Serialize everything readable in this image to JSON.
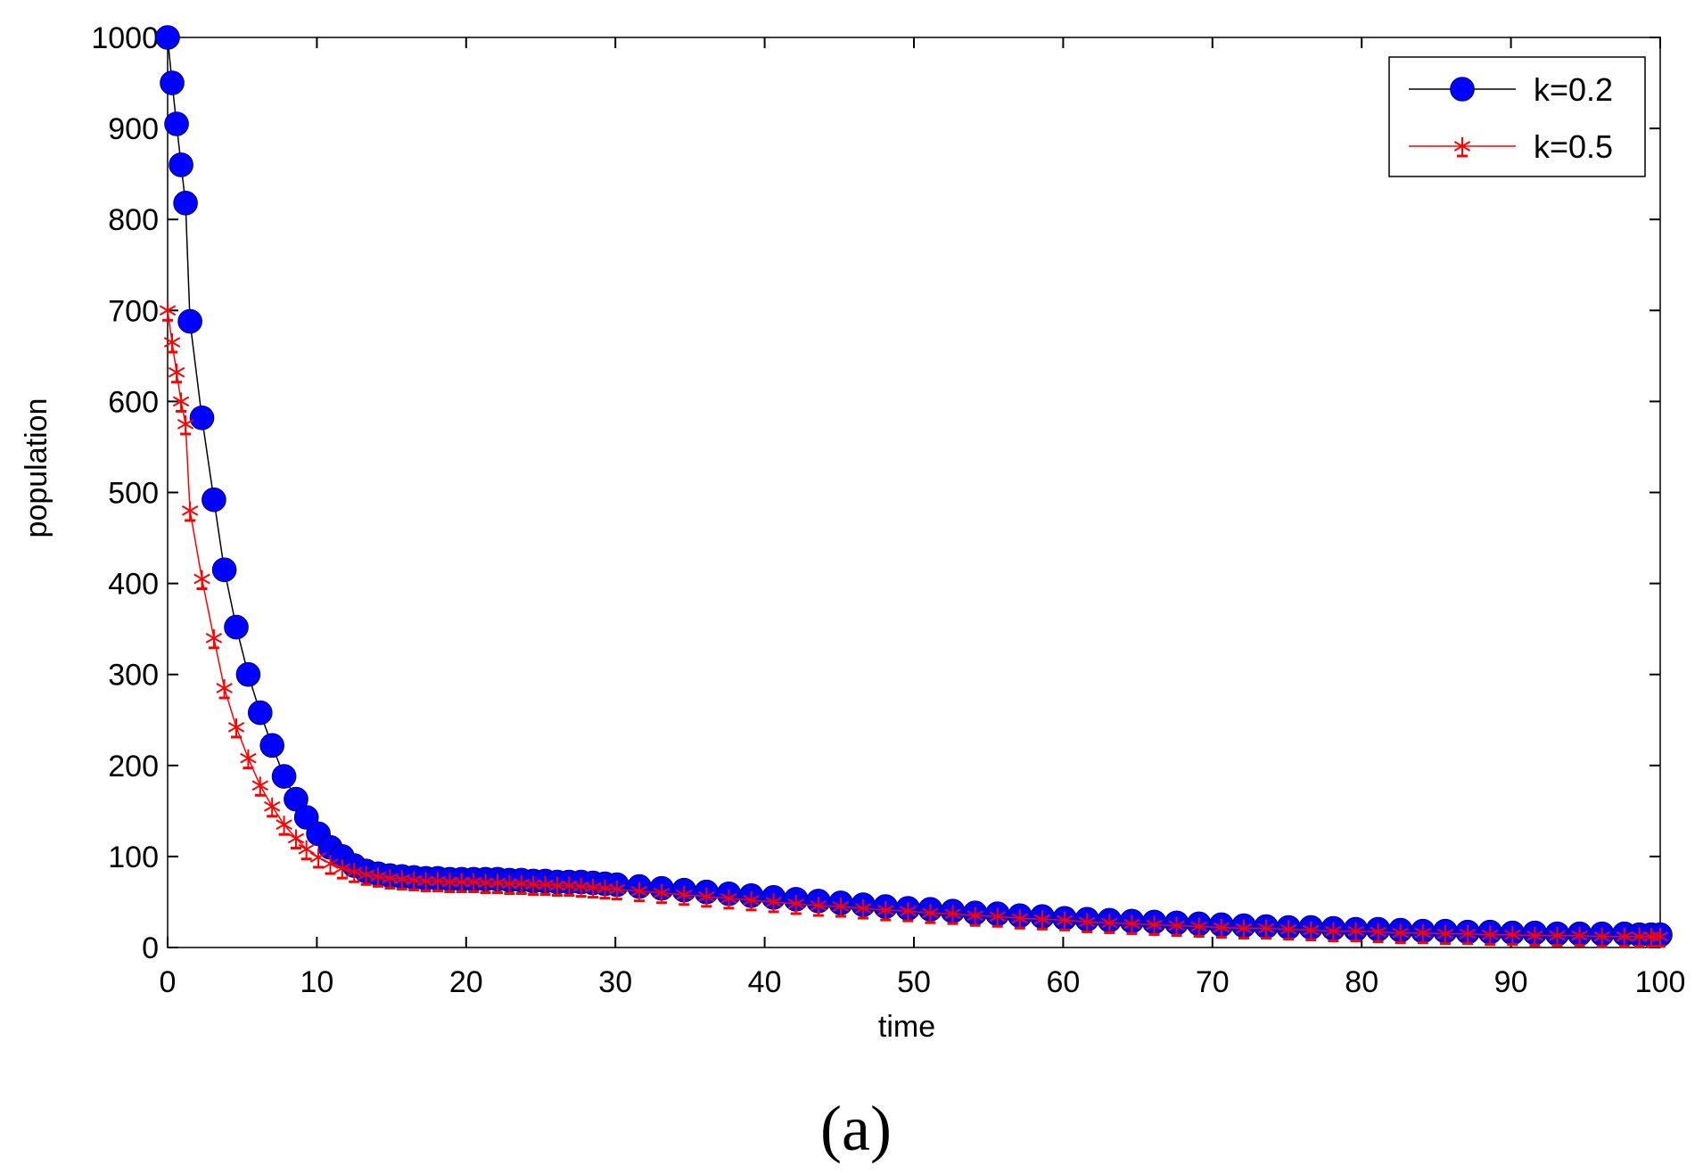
{
  "panel_label": "(a)",
  "chart_data": {
    "type": "line",
    "xlabel": "time",
    "ylabel": "population",
    "xlim": [
      0,
      100
    ],
    "ylim": [
      0,
      1000
    ],
    "xticks": [
      0,
      10,
      20,
      30,
      40,
      50,
      60,
      70,
      80,
      90,
      100
    ],
    "yticks": [
      0,
      100,
      200,
      300,
      400,
      500,
      600,
      700,
      800,
      900,
      1000
    ],
    "grid": false,
    "legend_position": "top-right",
    "series": [
      {
        "name": "k=0.2",
        "color": "#0000ff",
        "line_color": "#000000",
        "marker": "circle",
        "x": [
          0,
          0.3,
          0.6,
          0.9,
          1.2,
          1.5,
          2.3,
          3.1,
          3.8,
          4.6,
          5.4,
          6.2,
          7.0,
          7.8,
          8.6,
          9.3,
          10.1,
          10.9,
          11.7,
          12.5,
          13.3,
          14.1,
          14.9,
          15.7,
          16.5,
          17.3,
          18.1,
          18.9,
          19.7,
          20.5,
          21.3,
          22.1,
          22.9,
          23.7,
          24.5,
          25.3,
          26.1,
          26.9,
          27.7,
          28.5,
          29.3,
          30.1,
          31.6,
          33.1,
          34.6,
          36.1,
          37.6,
          39.1,
          40.6,
          42.1,
          43.6,
          45.1,
          46.6,
          48.1,
          49.6,
          51.1,
          52.6,
          54.1,
          55.6,
          57.1,
          58.6,
          60.1,
          61.6,
          63.1,
          64.6,
          66.1,
          67.6,
          69.1,
          70.6,
          72.1,
          73.6,
          75.1,
          76.6,
          78.1,
          79.6,
          81.1,
          82.6,
          84.1,
          85.6,
          87.1,
          88.6,
          90.1,
          91.6,
          93.1,
          94.6,
          96.1,
          97.6,
          98.6,
          99.4,
          100
        ],
        "y": [
          1000,
          950,
          905,
          860,
          818,
          688,
          582,
          492,
          415,
          352,
          300,
          258,
          222,
          188,
          163,
          143,
          125,
          110,
          100,
          90,
          84,
          81,
          79,
          78,
          77,
          76,
          76,
          75,
          75,
          75,
          75,
          75,
          74,
          74,
          73,
          73,
          72,
          72,
          72,
          71,
          70,
          69,
          67,
          65,
          63,
          61,
          59,
          57,
          55,
          53,
          51,
          49,
          47,
          45,
          43,
          42,
          40,
          38,
          37,
          35,
          34,
          32,
          31,
          30,
          29,
          28,
          27,
          26,
          25,
          24,
          23,
          22,
          22,
          21,
          20,
          20,
          19,
          18,
          18,
          17,
          17,
          16,
          16,
          15,
          15,
          15,
          15,
          14,
          14,
          14
        ]
      },
      {
        "name": "k=0.5",
        "color": "#ff0000",
        "line_color": "#ff0000",
        "marker": "star",
        "x": [
          0,
          0.3,
          0.6,
          0.9,
          1.2,
          1.5,
          2.3,
          3.1,
          3.8,
          4.6,
          5.4,
          6.2,
          7.0,
          7.8,
          8.6,
          9.3,
          10.1,
          10.9,
          11.7,
          12.5,
          13.3,
          14.1,
          14.9,
          15.7,
          16.5,
          17.3,
          18.1,
          18.9,
          19.7,
          20.5,
          21.3,
          22.1,
          22.9,
          23.7,
          24.5,
          25.3,
          26.1,
          26.9,
          27.7,
          28.5,
          29.3,
          30.1,
          31.6,
          33.1,
          34.6,
          36.1,
          37.6,
          39.1,
          40.6,
          42.1,
          43.6,
          45.1,
          46.6,
          48.1,
          49.6,
          51.1,
          52.6,
          54.1,
          55.6,
          57.1,
          58.6,
          60.1,
          61.6,
          63.1,
          64.6,
          66.1,
          67.6,
          69.1,
          70.6,
          72.1,
          73.6,
          75.1,
          76.6,
          78.1,
          79.6,
          81.1,
          82.6,
          84.1,
          85.6,
          87.1,
          88.6,
          90.1,
          91.6,
          93.1,
          94.6,
          96.1,
          97.6,
          98.6,
          99.4,
          100
        ],
        "y": [
          700,
          665,
          632,
          600,
          575,
          480,
          405,
          340,
          285,
          242,
          208,
          178,
          155,
          135,
          120,
          108,
          99,
          92,
          87,
          83,
          80,
          78,
          76,
          75,
          74,
          73,
          73,
          72,
          72,
          72,
          71,
          71,
          70,
          70,
          69,
          69,
          68,
          68,
          67,
          66,
          65,
          64,
          62,
          60,
          58,
          56,
          54,
          52,
          50,
          48,
          46,
          45,
          43,
          41,
          40,
          38,
          37,
          35,
          34,
          32,
          31,
          30,
          28,
          27,
          26,
          25,
          24,
          23,
          22,
          21,
          21,
          20,
          19,
          18,
          18,
          17,
          16,
          16,
          15,
          15,
          14,
          14,
          13,
          13,
          13,
          12,
          12,
          12,
          12,
          12
        ]
      }
    ]
  }
}
